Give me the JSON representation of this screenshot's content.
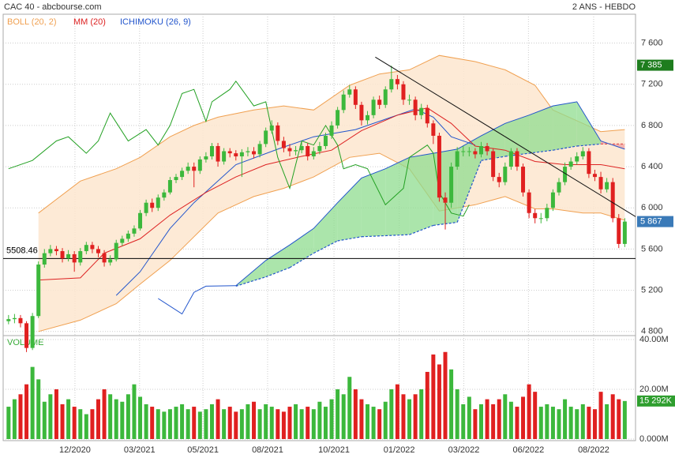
{
  "chart_data": {
    "type": "candlestick",
    "title": "CAC 40 - abcbourse.com",
    "subtitle": "2 ANS - HEBDO",
    "volume_title": "VOLUME",
    "up_color": "#3cb83c",
    "down_color": "#e02020",
    "ylim": [
      4760,
      7880
    ],
    "yticks": [
      {
        "value": 4800,
        "label": "4 800"
      },
      {
        "value": 5200,
        "label": "5 200"
      },
      {
        "value": 5600,
        "label": "5 600"
      },
      {
        "value": 6000,
        "label": "6 000"
      },
      {
        "value": 6400,
        "label": "6 400"
      },
      {
        "value": 6800,
        "label": "6 800"
      },
      {
        "value": 7200,
        "label": "7 200"
      },
      {
        "value": 7600,
        "label": "7 600"
      }
    ],
    "xlim": [
      -0.9,
      104.8
    ],
    "xticks": [
      {
        "value": 11.1,
        "label": "12/2020"
      },
      {
        "value": 21.9,
        "label": "03/2021"
      },
      {
        "value": 32.5,
        "label": "05/2021"
      },
      {
        "value": 43.3,
        "label": "08/2021"
      },
      {
        "value": 54.4,
        "label": "10/2021"
      },
      {
        "value": 65.3,
        "label": "01/2022"
      },
      {
        "value": 76.1,
        "label": "03/2022"
      },
      {
        "value": 86.9,
        "label": "06/2022"
      },
      {
        "value": 97.8,
        "label": "08/2022"
      }
    ],
    "grid": true,
    "ohlc": [
      [
        4900,
        4960,
        4870,
        4920
      ],
      [
        4920,
        4970,
        4880,
        4930
      ],
      [
        4930,
        4960,
        4840,
        4880
      ],
      [
        4880,
        4900,
        4600,
        4640
      ],
      [
        4640,
        4980,
        4620,
        4950
      ],
      [
        4950,
        5480,
        4930,
        5450
      ],
      [
        5450,
        5600,
        5420,
        5560
      ],
      [
        5560,
        5640,
        5530,
        5600
      ],
      [
        5600,
        5630,
        5540,
        5580
      ],
      [
        5580,
        5610,
        5470,
        5510
      ],
      [
        5510,
        5590,
        5480,
        5550
      ],
      [
        5550,
        5580,
        5380,
        5470
      ],
      [
        5470,
        5610,
        5440,
        5580
      ],
      [
        5580,
        5670,
        5550,
        5640
      ],
      [
        5640,
        5670,
        5560,
        5600
      ],
      [
        5600,
        5630,
        5520,
        5560
      ],
      [
        5560,
        5590,
        5430,
        5470
      ],
      [
        5470,
        5540,
        5440,
        5500
      ],
      [
        5500,
        5690,
        5480,
        5660
      ],
      [
        5660,
        5730,
        5630,
        5700
      ],
      [
        5700,
        5780,
        5670,
        5750
      ],
      [
        5750,
        5830,
        5720,
        5800
      ],
      [
        5800,
        5980,
        5780,
        5950
      ],
      [
        5950,
        6080,
        5920,
        6050
      ],
      [
        6050,
        6090,
        5960,
        6000
      ],
      [
        6000,
        6130,
        5970,
        6100
      ],
      [
        6100,
        6180,
        6070,
        6150
      ],
      [
        6150,
        6300,
        6130,
        6270
      ],
      [
        6270,
        6330,
        6240,
        6300
      ],
      [
        6300,
        6390,
        6270,
        6360
      ],
      [
        6360,
        6440,
        6330,
        6400
      ],
      [
        6400,
        6440,
        6200,
        6360
      ],
      [
        6360,
        6500,
        6330,
        6470
      ],
      [
        6470,
        6540,
        6440,
        6500
      ],
      [
        6500,
        6630,
        6470,
        6600
      ],
      [
        6600,
        6630,
        6400,
        6450
      ],
      [
        6450,
        6580,
        6420,
        6550
      ],
      [
        6550,
        6580,
        6490,
        6530
      ],
      [
        6530,
        6560,
        6460,
        6500
      ],
      [
        6500,
        6570,
        6300,
        6540
      ],
      [
        6540,
        6590,
        6500,
        6550
      ],
      [
        6550,
        6590,
        6480,
        6520
      ],
      [
        6520,
        6650,
        6490,
        6620
      ],
      [
        6620,
        6780,
        6590,
        6750
      ],
      [
        6750,
        6850,
        6720,
        6800
      ],
      [
        6800,
        6830,
        6610,
        6650
      ],
      [
        6650,
        6690,
        6540,
        6580
      ],
      [
        6580,
        6620,
        6500,
        6550
      ],
      [
        6550,
        6600,
        6510,
        6560
      ],
      [
        6560,
        6640,
        6530,
        6600
      ],
      [
        6600,
        6630,
        6460,
        6500
      ],
      [
        6500,
        6590,
        6470,
        6550
      ],
      [
        6550,
        6640,
        6520,
        6600
      ],
      [
        6600,
        6730,
        6570,
        6700
      ],
      [
        6700,
        6840,
        6670,
        6800
      ],
      [
        6800,
        6980,
        6770,
        6950
      ],
      [
        6950,
        7140,
        6920,
        7100
      ],
      [
        7100,
        7190,
        7070,
        7150
      ],
      [
        7150,
        7180,
        6960,
        7000
      ],
      [
        7000,
        7030,
        6800,
        6850
      ],
      [
        6850,
        6940,
        6810,
        6900
      ],
      [
        6900,
        7080,
        6870,
        7050
      ],
      [
        7050,
        7090,
        6960,
        7000
      ],
      [
        7000,
        7180,
        6970,
        7150
      ],
      [
        7150,
        7380,
        7120,
        7250
      ],
      [
        7250,
        7290,
        7150,
        7200
      ],
      [
        7200,
        7230,
        7000,
        7050
      ],
      [
        7050,
        7100,
        7000,
        7050
      ],
      [
        7050,
        7080,
        6850,
        6900
      ],
      [
        6900,
        7010,
        6860,
        6970
      ],
      [
        6970,
        7000,
        6780,
        6820
      ],
      [
        6820,
        6850,
        6620,
        6700
      ],
      [
        6700,
        6730,
        6060,
        6100
      ],
      [
        6100,
        6150,
        5790,
        6050
      ],
      [
        6050,
        6440,
        6000,
        6400
      ],
      [
        6400,
        6590,
        6370,
        6550
      ],
      [
        6550,
        6600,
        6500,
        6550
      ],
      [
        6550,
        6590,
        6500,
        6550
      ],
      [
        6550,
        6580,
        6480,
        6520
      ],
      [
        6520,
        6640,
        6490,
        6600
      ],
      [
        6600,
        6630,
        6510,
        6550
      ],
      [
        6550,
        6580,
        6260,
        6300
      ],
      [
        6300,
        6340,
        6200,
        6250
      ],
      [
        6250,
        6440,
        6220,
        6400
      ],
      [
        6400,
        6580,
        6370,
        6550
      ],
      [
        6550,
        6580,
        6360,
        6400
      ],
      [
        6400,
        6430,
        6110,
        6150
      ],
      [
        6150,
        6180,
        5900,
        5950
      ],
      [
        5950,
        5990,
        5850,
        5900
      ],
      [
        5900,
        5950,
        5850,
        5900
      ],
      [
        5900,
        6040,
        5870,
        6000
      ],
      [
        6000,
        6180,
        5970,
        6150
      ],
      [
        6150,
        6290,
        6120,
        6250
      ],
      [
        6250,
        6440,
        6220,
        6400
      ],
      [
        6400,
        6490,
        6370,
        6450
      ],
      [
        6450,
        6540,
        6420,
        6500
      ],
      [
        6500,
        6590,
        6470,
        6550
      ],
      [
        6550,
        6580,
        6290,
        6330
      ],
      [
        6330,
        6370,
        6260,
        6300
      ],
      [
        6300,
        6350,
        6140,
        6180
      ],
      [
        6180,
        6290,
        6150,
        6250
      ],
      [
        6250,
        6290,
        5860,
        5900
      ],
      [
        5900,
        5940,
        5610,
        5650
      ],
      [
        5650,
        5900,
        5620,
        5867
      ]
    ],
    "volume": [
      13,
      16,
      18,
      22,
      29,
      24,
      15,
      18,
      20,
      14,
      16,
      13,
      12,
      10,
      12,
      16,
      20,
      18,
      16,
      15,
      18,
      22,
      17,
      14,
      13,
      12,
      11,
      12,
      13,
      14,
      12,
      13,
      11,
      12,
      14,
      16,
      12,
      13,
      11,
      12,
      14,
      15,
      12,
      14,
      13,
      12,
      11,
      13,
      14,
      12,
      13,
      12,
      15,
      13,
      16,
      20,
      18,
      25,
      20,
      16,
      14,
      13,
      12,
      15,
      20,
      22,
      18,
      16,
      18,
      20,
      27,
      34,
      30,
      35,
      28,
      20,
      14,
      17,
      12,
      14,
      16,
      14,
      16,
      18,
      15,
      13,
      17,
      22,
      19,
      13,
      14,
      13,
      12,
      16,
      13,
      12,
      14,
      13,
      12,
      19,
      14,
      18,
      16,
      15.292
    ],
    "vlim": [
      0,
      40
    ],
    "vticks": [
      {
        "value": 0,
        "label": "0.000M"
      },
      {
        "value": 20,
        "label": "20.00M"
      },
      {
        "value": 40,
        "label": "40.00M"
      }
    ],
    "bollinger": {
      "name": "BOLL (20, 2)",
      "color": "#f0a050",
      "fill": "#fde6cf",
      "x": [
        5,
        12,
        18,
        22,
        27,
        31,
        35,
        41,
        46,
        51,
        57,
        62,
        67,
        72,
        78,
        83,
        88,
        91,
        96,
        99,
        103
      ],
      "upper": [
        5950,
        6260,
        6380,
        6490,
        6690,
        6800,
        6880,
        6950,
        6990,
        6950,
        7190,
        7300,
        7340,
        7480,
        7420,
        7340,
        7190,
        6950,
        6820,
        6740,
        6760
      ],
      "lower": [
        4800,
        4910,
        5070,
        5260,
        5490,
        5720,
        5950,
        6110,
        6190,
        6300,
        6490,
        6530,
        6380,
        5970,
        6030,
        6110,
        5990,
        5990,
        5950,
        5950,
        5880
      ]
    },
    "mm": {
      "name": "MM (20)",
      "color": "#dd2222",
      "x": [
        5,
        12,
        16,
        22,
        27,
        33,
        38,
        43,
        49,
        54,
        59,
        65,
        70,
        74,
        78,
        83,
        88,
        93,
        99,
        103
      ],
      "values": [
        5300,
        5320,
        5560,
        5700,
        5930,
        6150,
        6300,
        6420,
        6500,
        6560,
        6750,
        6900,
        6970,
        6820,
        6600,
        6560,
        6450,
        6420,
        6420,
        6380
      ]
    },
    "ichimoku": {
      "name": "ICHIMOKU (26, 9)",
      "color": "#2255cc",
      "chikou": {
        "color": "#22a022",
        "x": [
          0,
          4,
          8,
          10,
          13,
          15,
          17,
          20,
          23,
          25,
          27,
          29,
          31,
          33,
          34,
          37,
          38,
          39,
          41,
          43,
          45,
          47,
          49,
          51,
          53,
          55,
          56,
          58,
          60,
          63,
          66,
          67,
          70,
          71,
          72,
          74,
          76,
          77
        ],
        "values": [
          6380,
          6460,
          6650,
          6690,
          6530,
          6650,
          6920,
          6650,
          6760,
          6610,
          6800,
          7110,
          7150,
          6840,
          7030,
          7150,
          7230,
          7150,
          6990,
          7030,
          6490,
          6190,
          6650,
          6610,
          6800,
          6610,
          6380,
          6420,
          6380,
          6030,
          6190,
          6490,
          6610,
          6530,
          6150,
          5950,
          5920,
          6030
        ]
      },
      "tenkan": {
        "x": [
          18,
          22,
          27,
          31,
          38,
          45,
          51,
          58,
          64,
          68,
          71,
          74,
          78
        ],
        "values": [
          5150,
          5380,
          5800,
          6050,
          6420,
          6570,
          6690,
          6760,
          6880,
          6960,
          6880,
          6690,
          6610
        ]
      },
      "kijun": {
        "x": [
          25,
          29,
          31,
          33,
          38
        ],
        "values": [
          5120,
          4970,
          5180,
          5240,
          5245
        ]
      },
      "cloud": {
        "up_color": "#8fdc8f",
        "down_color": "#f0a0a0",
        "down_line": "#e05555",
        "x": [
          38,
          43,
          47,
          51,
          55,
          59,
          63,
          67,
          71,
          75,
          79,
          83,
          87,
          91,
          95,
          99,
          103
        ],
        "span_a": [
          5245,
          5490,
          5640,
          5800,
          6050,
          6290,
          6380,
          6490,
          6530,
          6570,
          6700,
          6820,
          6900,
          6990,
          7030,
          6650,
          6570
        ],
        "span_b": [
          5240,
          5330,
          5420,
          5560,
          5680,
          5720,
          5730,
          5740,
          5830,
          5860,
          6460,
          6500,
          6530,
          6560,
          6600,
          6620,
          6620
        ]
      }
    },
    "trendline": {
      "x": [
        61.3,
        104.8
      ],
      "values": [
        7464,
        5915
      ]
    },
    "hline": {
      "value": 5508.46,
      "label": "5508.46"
    },
    "price_tags": [
      {
        "value": 7385,
        "label": "7 385",
        "color": "#1e7d1e"
      },
      {
        "value": 5867,
        "label": "5 867",
        "color": "#3a7ab8"
      }
    ],
    "volume_tag": {
      "value": 15.292,
      "label": "15 292K",
      "color": "#2e9e2e"
    }
  }
}
